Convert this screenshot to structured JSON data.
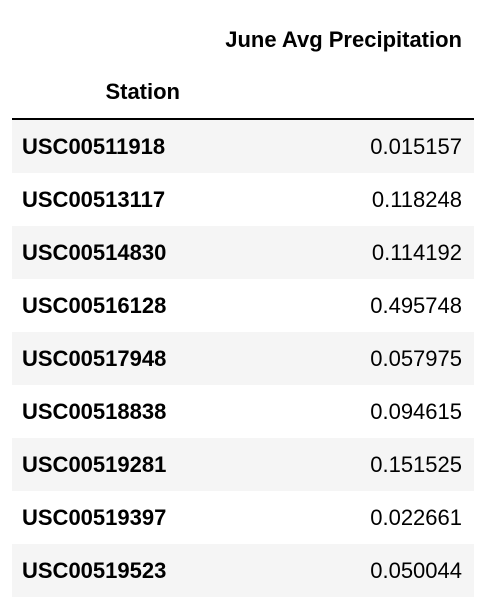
{
  "table": {
    "column_header": "June Avg Precipitation",
    "index_header": "Station",
    "rows": [
      {
        "station": "USC00511918",
        "value": "0.015157"
      },
      {
        "station": "USC00513117",
        "value": "0.118248"
      },
      {
        "station": "USC00514830",
        "value": "0.114192"
      },
      {
        "station": "USC00516128",
        "value": "0.495748"
      },
      {
        "station": "USC00517948",
        "value": "0.057975"
      },
      {
        "station": "USC00518838",
        "value": "0.094615"
      },
      {
        "station": "USC00519281",
        "value": "0.151525"
      },
      {
        "station": "USC00519397",
        "value": "0.022661"
      },
      {
        "station": "USC00519523",
        "value": "0.050044"
      }
    ]
  },
  "colors": {
    "stripe": "#f5f5f5",
    "text": "#000000",
    "background": "#ffffff"
  }
}
